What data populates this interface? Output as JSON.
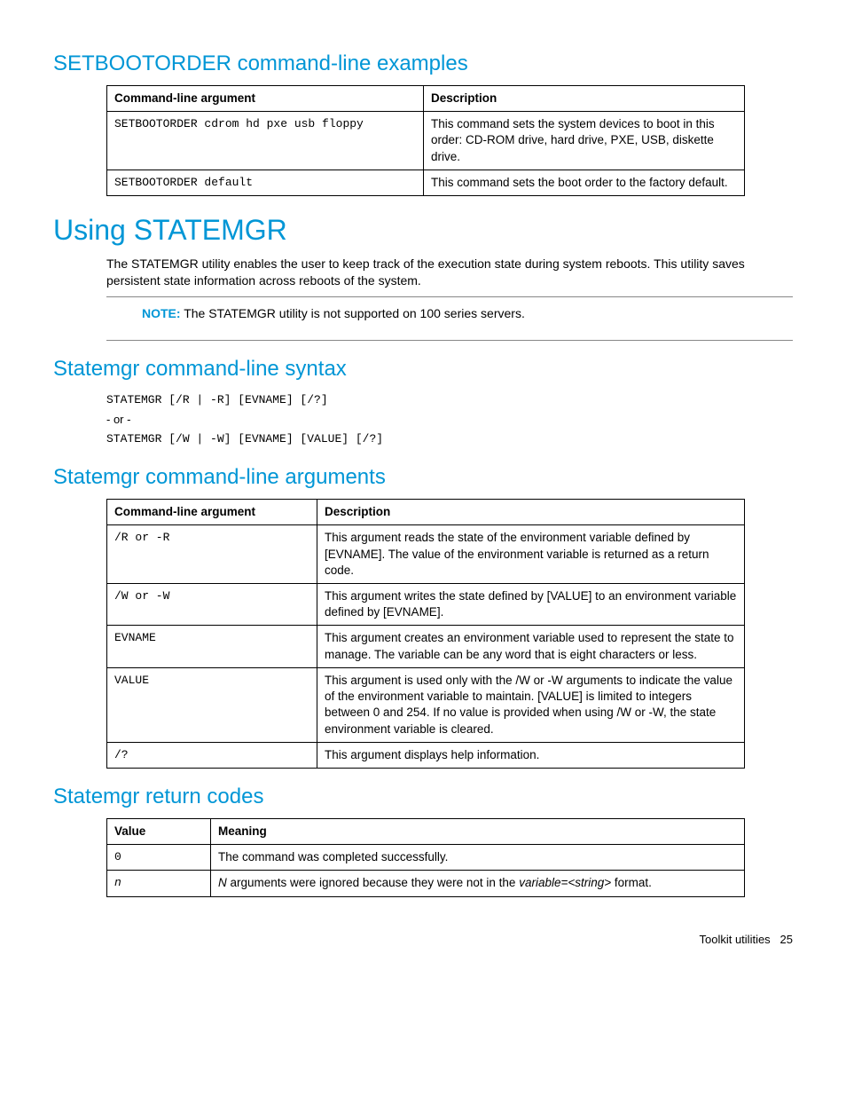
{
  "h2_setbootorder": "SETBOOTORDER command-line examples",
  "table1": {
    "headers": [
      "Command-line argument",
      "Description"
    ],
    "rows": [
      {
        "arg": "SETBOOTORDER cdrom hd pxe usb floppy",
        "desc": "This command sets the system devices to boot in this order: CD-ROM drive, hard drive, PXE, USB, diskette drive."
      },
      {
        "arg": "SETBOOTORDER default",
        "desc": "This command sets the boot order to the factory default."
      }
    ]
  },
  "h1_using": "Using STATEMGR",
  "para_using": "The STATEMGR utility enables the user to keep track of the execution state during system reboots. This utility saves persistent state information across reboots of the system.",
  "note_label": "NOTE:",
  "note_text": " The STATEMGR utility is not supported on 100 series servers.",
  "h2_syntax": "Statemgr command-line syntax",
  "syntax_line1": "STATEMGR [/R | -R] [EVNAME] [/?]",
  "syntax_or": "- or -",
  "syntax_line2": "STATEMGR [/W | -W] [EVNAME] [VALUE] [/?]",
  "h2_args": "Statemgr command-line arguments",
  "table2": {
    "headers": [
      "Command-line argument",
      "Description"
    ],
    "rows": [
      {
        "arg": "/R or -R",
        "desc": "This argument reads the state of the environment variable defined by [EVNAME]. The value of the environment variable is returned as a return code."
      },
      {
        "arg": "/W or -W",
        "desc": "This argument writes the state defined by [VALUE] to an environment variable defined by [EVNAME]."
      },
      {
        "arg": "EVNAME",
        "desc": "This argument creates an environment variable used to represent the state to manage. The variable can be any word that is eight characters or less."
      },
      {
        "arg": "VALUE",
        "desc": "This argument is used only with the /W or -W arguments to indicate the value of the environment variable to maintain. [VALUE] is limited to integers between 0 and 254. If no value is provided when using /W or -W, the state environment variable is cleared."
      },
      {
        "arg": "/?",
        "desc": "This argument displays help information."
      }
    ]
  },
  "h2_return": "Statemgr return codes",
  "table3": {
    "headers": [
      "Value",
      "Meaning"
    ],
    "rows": [
      {
        "val": "0",
        "mean_pre": "The command was completed successfully."
      },
      {
        "val": "n",
        "val_italic": true,
        "mean_pre": "N",
        "mean_mid": " arguments were ignored because they were not in the ",
        "mean_var": "variable=<string>",
        "mean_post": " format."
      }
    ]
  },
  "footer_text": "Toolkit utilities",
  "footer_page": "25"
}
